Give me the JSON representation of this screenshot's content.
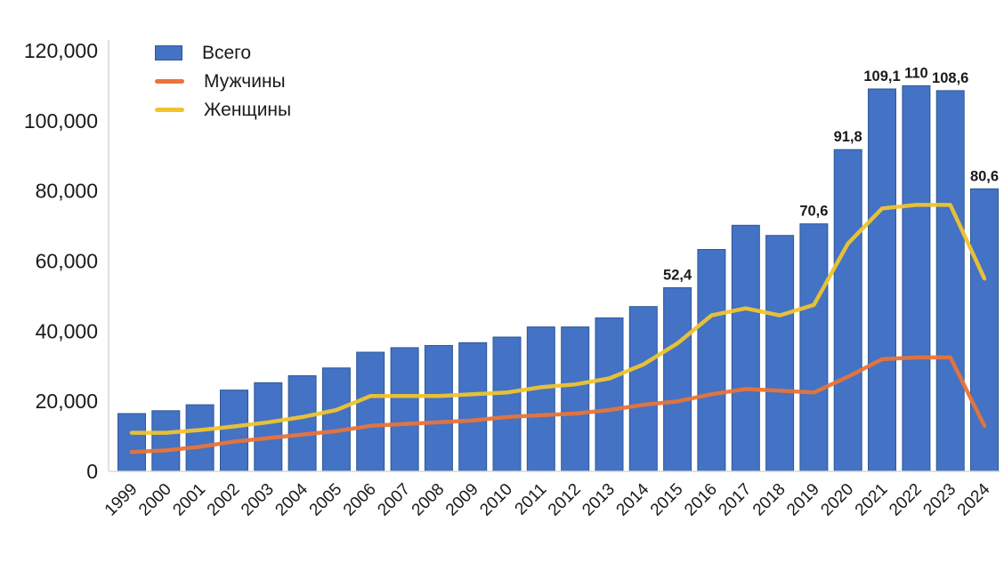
{
  "chart_data": {
    "type": "bar",
    "title": "",
    "xlabel": "",
    "ylabel": "",
    "ylim": [
      0,
      120000
    ],
    "ytick_step": 20000,
    "ytick_labels": [
      "0",
      "20,000",
      "40,000",
      "60,000",
      "80,000",
      "100,000",
      "120,000"
    ],
    "grid": false,
    "legend_position": "top-left",
    "categories": [
      "1999",
      "2000",
      "2001",
      "2002",
      "2003",
      "2004",
      "2005",
      "2006",
      "2007",
      "2008",
      "2009",
      "2010",
      "2011",
      "2012",
      "2013",
      "2014",
      "2015",
      "2016",
      "2017",
      "2018",
      "2019",
      "2020",
      "2021",
      "2022",
      "2023",
      "2024"
    ],
    "series": [
      {
        "name": "Всего",
        "type": "bar",
        "color": "#4472C4",
        "border_color": "#2E5897",
        "values": [
          16500,
          17300,
          19000,
          23200,
          25300,
          27300,
          29500,
          34000,
          35300,
          35900,
          36700,
          38300,
          41200,
          41200,
          43800,
          47000,
          52400,
          63300,
          70200,
          67300,
          70600,
          91800,
          109100,
          110000,
          108600,
          80600
        ]
      },
      {
        "name": "Мужчины",
        "type": "line",
        "color": "#E8743A",
        "values": [
          5500,
          6000,
          7000,
          8500,
          9500,
          10500,
          11500,
          13000,
          13500,
          14000,
          14500,
          15500,
          16000,
          16500,
          17500,
          19000,
          20000,
          22000,
          23500,
          23000,
          22500,
          27000,
          32000,
          32500,
          32500,
          13000
        ]
      },
      {
        "name": "Женщины",
        "type": "line",
        "color": "#EFC42F",
        "values": [
          11000,
          11000,
          11800,
          12800,
          14000,
          15500,
          17500,
          21500,
          21500,
          21500,
          22000,
          22500,
          24000,
          24800,
          26500,
          30500,
          36500,
          44500,
          46500,
          44500,
          47500,
          65000,
          75000,
          76000,
          76000,
          55000
        ]
      }
    ],
    "annotations": [
      {
        "category": "2015",
        "label": "52,4"
      },
      {
        "category": "2019",
        "label": "70,6"
      },
      {
        "category": "2020",
        "label": "91,8"
      },
      {
        "category": "2021",
        "label": "109,1"
      },
      {
        "category": "2022",
        "label": "110"
      },
      {
        "category": "2023",
        "label": "108,6"
      },
      {
        "category": "2024",
        "label": "80,6"
      }
    ],
    "axis_color": "#D9D9D9",
    "text_color": "#1A1A1A"
  }
}
